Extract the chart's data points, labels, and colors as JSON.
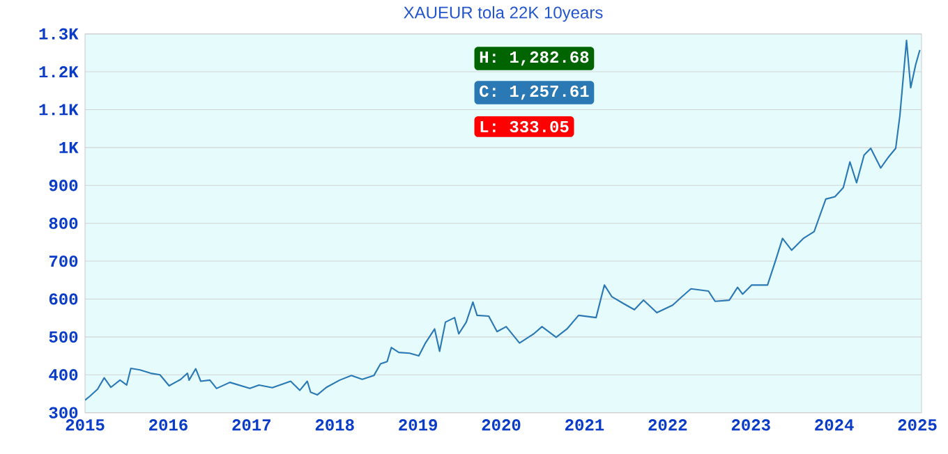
{
  "chart_data": {
    "type": "line",
    "title": "XAUEUR tola 22K 10years",
    "x": [
      2015.0,
      2015.06,
      2015.15,
      2015.23,
      2015.31,
      2015.42,
      2015.5,
      2015.55,
      2015.66,
      2015.79,
      2015.9,
      2016.01,
      2016.15,
      2016.23,
      2016.25,
      2016.33,
      2016.39,
      2016.5,
      2016.58,
      2016.74,
      2016.98,
      2017.09,
      2017.25,
      2017.47,
      2017.58,
      2017.67,
      2017.71,
      2017.79,
      2017.9,
      2018.06,
      2018.2,
      2018.33,
      2018.47,
      2018.55,
      2018.63,
      2018.68,
      2018.77,
      2018.9,
      2019.01,
      2019.09,
      2019.2,
      2019.26,
      2019.33,
      2019.44,
      2019.49,
      2019.58,
      2019.66,
      2019.71,
      2019.85,
      2019.95,
      2020.06,
      2020.22,
      2020.39,
      2020.49,
      2020.66,
      2020.79,
      2020.93,
      2021.14,
      2021.24,
      2021.33,
      2021.47,
      2021.6,
      2021.71,
      2021.87,
      2022.06,
      2022.17,
      2022.28,
      2022.49,
      2022.57,
      2022.74,
      2022.84,
      2022.9,
      2023.01,
      2023.2,
      2023.3,
      2023.38,
      2023.49,
      2023.63,
      2023.76,
      2023.82,
      2023.9,
      2024.01,
      2024.11,
      2024.19,
      2024.27,
      2024.36,
      2024.44,
      2024.56,
      2024.65,
      2024.74,
      2024.79,
      2024.87,
      2024.92,
      2024.98,
      2025.03
    ],
    "series": [
      {
        "color": "#2a78b4",
        "values": [
          333.05,
          344,
          362,
          392,
          367,
          386,
          373,
          417,
          413,
          404,
          400,
          371,
          388,
          404,
          386,
          416,
          383,
          386,
          364,
          380,
          364,
          373,
          366,
          383,
          359,
          383,
          354,
          347,
          367,
          386,
          398,
          388,
          398,
          429,
          435,
          472,
          459,
          457,
          450,
          484,
          521,
          462,
          539,
          551,
          508,
          539,
          592,
          557,
          555,
          514,
          527,
          484,
          508,
          527,
          499,
          521,
          557,
          551,
          637,
          606,
          588,
          572,
          597,
          564,
          584,
          606,
          627,
          621,
          594,
          597,
          631,
          613,
          637,
          637,
          704,
          760,
          729,
          760,
          778,
          815,
          864,
          870,
          894,
          962,
          907,
          980,
          998,
          946,
          974,
          998,
          1084,
          1282.68,
          1158,
          1219,
          1257.61
        ]
      }
    ],
    "xlim": [
      2015,
      2025.05
    ],
    "xticks": [
      2015,
      2016,
      2017,
      2018,
      2019,
      2020,
      2021,
      2022,
      2023,
      2024,
      2025
    ],
    "ylim": [
      300,
      1300
    ],
    "yticks": [
      300,
      400,
      500,
      600,
      700,
      800,
      900,
      {
        "value": 1000,
        "label": "1K"
      },
      {
        "value": 1100,
        "label": "1.1K"
      },
      {
        "value": 1200,
        "label": "1.2K"
      },
      {
        "value": 1300,
        "label": "1.3K"
      }
    ],
    "grid": "y",
    "annotations": [
      "H: 1,282.68",
      "C: 1,257.61",
      "L: 333.05"
    ]
  }
}
